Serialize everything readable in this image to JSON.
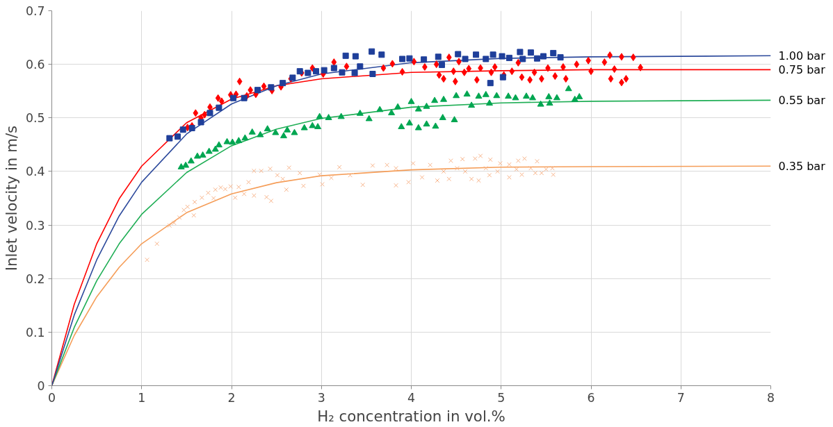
{
  "chart_data": {
    "type": "scatter",
    "xlabel": "H₂ concentration in vol.%",
    "ylabel": "Inlet velocity in m/s",
    "xlim": [
      0,
      8
    ],
    "xticks": [
      0,
      1,
      2,
      3,
      4,
      5,
      6,
      7,
      8
    ],
    "ylim": [
      0,
      0.7
    ],
    "yticks": [
      0,
      0.1,
      0.2,
      0.3,
      0.4,
      0.5,
      0.6,
      0.7
    ],
    "grid": true,
    "series": [
      {
        "marker": "square",
        "color": "#1f3f9a",
        "x": [
          1.31,
          1.4,
          1.46,
          1.56,
          1.66,
          1.76,
          1.86,
          2.02,
          2.14,
          2.29,
          2.44,
          2.57,
          2.68,
          2.76,
          2.85,
          2.94,
          3.03,
          3.14,
          3.23,
          3.27,
          3.38,
          3.37,
          3.43,
          3.56,
          3.67,
          3.57,
          3.9,
          3.98,
          4.14,
          4.3,
          4.34,
          4.52,
          4.6,
          4.72,
          4.83,
          4.88,
          4.91,
          5.01,
          5.09,
          5.21,
          5.33,
          5.24,
          5.4,
          5.47,
          5.58,
          5.66,
          5.02
        ],
        "values": [
          0.462,
          0.465,
          0.478,
          0.481,
          0.492,
          0.509,
          0.519,
          0.537,
          0.537,
          0.552,
          0.557,
          0.565,
          0.575,
          0.587,
          0.584,
          0.587,
          0.589,
          0.593,
          0.585,
          0.616,
          0.615,
          0.584,
          0.596,
          0.624,
          0.618,
          0.582,
          0.61,
          0.611,
          0.609,
          0.614,
          0.599,
          0.619,
          0.61,
          0.618,
          0.61,
          0.565,
          0.618,
          0.615,
          0.612,
          0.623,
          0.622,
          0.61,
          0.611,
          0.615,
          0.621,
          0.613,
          0.576
        ]
      },
      {
        "marker": "diamond",
        "color": "#ff0000",
        "x": [
          1.51,
          1.56,
          1.6,
          1.66,
          1.7,
          1.76,
          1.85,
          1.89,
          1.99,
          2.05,
          2.09,
          2.17,
          2.21,
          2.27,
          2.36,
          2.45,
          2.55,
          2.66,
          2.78,
          2.9,
          3.02,
          3.14,
          3.28,
          3.69,
          3.79,
          3.9,
          4.03,
          4.15,
          4.28,
          4.31,
          4.36,
          4.42,
          4.47,
          4.49,
          4.53,
          4.59,
          4.64,
          4.73,
          4.77,
          4.89,
          4.93,
          5.03,
          5.12,
          5.19,
          5.23,
          5.32,
          5.37,
          5.45,
          5.52,
          5.6,
          5.69,
          5.72,
          5.84,
          5.97,
          6.0,
          6.15,
          6.21,
          6.22,
          6.26,
          6.34,
          6.34,
          6.39,
          6.47,
          6.55
        ],
        "values": [
          0.482,
          0.485,
          0.509,
          0.5,
          0.506,
          0.52,
          0.537,
          0.531,
          0.543,
          0.544,
          0.568,
          0.541,
          0.552,
          0.544,
          0.559,
          0.551,
          0.558,
          0.573,
          0.584,
          0.593,
          0.582,
          0.604,
          0.596,
          0.593,
          0.601,
          0.586,
          0.605,
          0.595,
          0.6,
          0.58,
          0.573,
          0.613,
          0.587,
          0.568,
          0.605,
          0.585,
          0.592,
          0.571,
          0.593,
          0.585,
          0.595,
          0.58,
          0.587,
          0.603,
          0.576,
          0.571,
          0.585,
          0.573,
          0.593,
          0.578,
          0.595,
          0.573,
          0.6,
          0.607,
          0.587,
          0.604,
          0.617,
          0.573,
          0.591,
          0.614,
          0.566,
          0.573,
          0.613,
          0.594
        ]
      },
      {
        "marker": "triangle",
        "color": "#00a651",
        "x": [
          1.44,
          1.49,
          1.55,
          1.62,
          1.68,
          1.75,
          1.82,
          1.86,
          1.95,
          2.01,
          2.08,
          2.15,
          2.23,
          2.32,
          2.4,
          2.49,
          2.58,
          2.62,
          2.7,
          2.81,
          2.9,
          2.96,
          2.98,
          3.08,
          3.22,
          3.43,
          3.53,
          3.65,
          3.78,
          3.85,
          3.89,
          3.98,
          4.0,
          4.08,
          4.08,
          4.17,
          4.17,
          4.26,
          4.27,
          4.35,
          4.36,
          4.48,
          4.5,
          4.62,
          4.67,
          4.75,
          4.83,
          4.87,
          4.95,
          5.08,
          5.16,
          5.28,
          5.35,
          5.44,
          5.53,
          5.54,
          5.62,
          5.75,
          5.82,
          5.87
        ],
        "values": [
          0.408,
          0.411,
          0.419,
          0.428,
          0.43,
          0.437,
          0.441,
          0.449,
          0.455,
          0.454,
          0.457,
          0.462,
          0.473,
          0.468,
          0.479,
          0.472,
          0.466,
          0.477,
          0.472,
          0.481,
          0.485,
          0.483,
          0.502,
          0.5,
          0.502,
          0.508,
          0.498,
          0.515,
          0.509,
          0.52,
          0.483,
          0.49,
          0.53,
          0.481,
          0.516,
          0.488,
          0.521,
          0.532,
          0.484,
          0.5,
          0.534,
          0.496,
          0.541,
          0.544,
          0.523,
          0.54,
          0.543,
          0.527,
          0.541,
          0.54,
          0.537,
          0.54,
          0.537,
          0.525,
          0.539,
          0.527,
          0.537,
          0.554,
          0.534,
          0.539
        ]
      },
      {
        "marker": "cross",
        "color": "#f8b48a",
        "x": [
          1.06,
          1.17,
          1.31,
          1.36,
          1.42,
          1.47,
          1.51,
          1.58,
          1.59,
          1.67,
          1.74,
          1.8,
          1.82,
          1.88,
          1.93,
          1.99,
          2.04,
          2.08,
          2.14,
          2.19,
          2.25,
          2.25,
          2.33,
          2.39,
          2.44,
          2.43,
          2.51,
          2.57,
          2.61,
          2.64,
          2.76,
          2.8,
          2.98,
          3.01,
          3.11,
          3.2,
          3.32,
          3.46,
          3.57,
          3.73,
          3.83,
          3.83,
          3.97,
          4.02,
          4.12,
          4.21,
          4.29,
          4.36,
          4.42,
          4.44,
          4.51,
          4.57,
          4.6,
          4.67,
          4.71,
          4.75,
          4.77,
          4.83,
          4.87,
          4.88,
          4.96,
          4.99,
          5.09,
          5.09,
          5.17,
          5.19,
          5.23,
          5.26,
          5.33,
          5.38,
          5.4,
          5.45,
          5.5,
          5.58,
          5.57
        ],
        "values": [
          0.235,
          0.265,
          0.299,
          0.304,
          0.314,
          0.328,
          0.334,
          0.318,
          0.343,
          0.351,
          0.36,
          0.35,
          0.366,
          0.37,
          0.367,
          0.372,
          0.351,
          0.371,
          0.358,
          0.38,
          0.355,
          0.401,
          0.401,
          0.352,
          0.345,
          0.405,
          0.393,
          0.386,
          0.366,
          0.407,
          0.397,
          0.373,
          0.394,
          0.376,
          0.388,
          0.408,
          0.393,
          0.375,
          0.411,
          0.412,
          0.374,
          0.406,
          0.38,
          0.415,
          0.389,
          0.412,
          0.383,
          0.4,
          0.386,
          0.42,
          0.406,
          0.423,
          0.4,
          0.386,
          0.424,
          0.383,
          0.429,
          0.406,
          0.393,
          0.422,
          0.4,
          0.415,
          0.389,
          0.413,
          0.404,
          0.42,
          0.394,
          0.424,
          0.406,
          0.397,
          0.419,
          0.397,
          0.404,
          0.394,
          0.406
        ]
      },
      {
        "type": "line",
        "name": "1.00 bar",
        "color": "#2d4a9c",
        "x": [
          0,
          0.25,
          0.5,
          0.75,
          1,
          1.5,
          2,
          2.5,
          3,
          4,
          5,
          6,
          8
        ],
        "values": [
          0,
          0.132,
          0.235,
          0.317,
          0.38,
          0.47,
          0.526,
          0.56,
          0.582,
          0.603,
          0.611,
          0.614,
          0.616
        ]
      },
      {
        "type": "line",
        "name": "0.75 bar",
        "color": "#ff0000",
        "x": [
          0,
          0.25,
          0.5,
          0.75,
          1,
          1.5,
          2,
          2.5,
          3,
          4,
          5,
          6,
          8
        ],
        "values": [
          0,
          0.152,
          0.265,
          0.349,
          0.41,
          0.491,
          0.535,
          0.56,
          0.573,
          0.585,
          0.588,
          0.59,
          0.59
        ]
      },
      {
        "type": "line",
        "name": "0.55 bar",
        "color": "#1fae55",
        "x": [
          0,
          0.25,
          0.5,
          0.75,
          1,
          1.5,
          2,
          2.5,
          3,
          4,
          5,
          6,
          8
        ],
        "values": [
          0,
          0.109,
          0.196,
          0.265,
          0.32,
          0.398,
          0.448,
          0.479,
          0.499,
          0.52,
          0.528,
          0.531,
          0.533
        ]
      },
      {
        "type": "line",
        "name": "0.35 bar",
        "color": "#f59d58",
        "x": [
          0,
          0.25,
          0.5,
          0.75,
          1,
          1.5,
          2,
          2.5,
          3,
          4,
          5,
          6,
          8
        ],
        "values": [
          0,
          0.094,
          0.166,
          0.221,
          0.265,
          0.323,
          0.358,
          0.379,
          0.392,
          0.403,
          0.408,
          0.409,
          0.41
        ]
      }
    ]
  }
}
